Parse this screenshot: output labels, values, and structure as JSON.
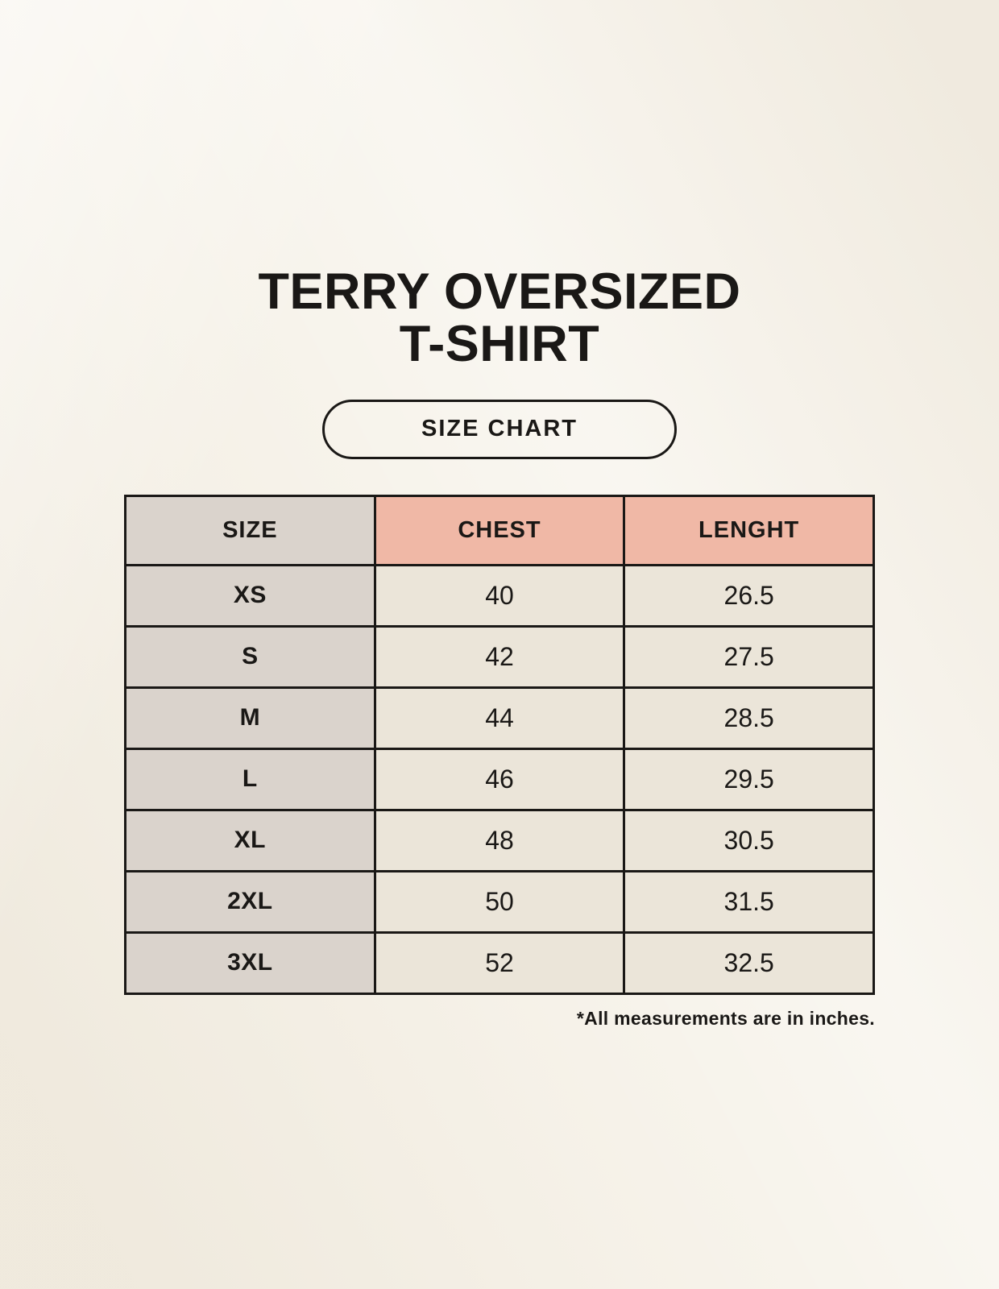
{
  "header": {
    "title_line1": "TERRY OVERSIZED",
    "title_line2": "T-SHIRT",
    "size_chart_button_label": "SIZE CHART"
  },
  "table": {
    "columns": [
      "SIZE",
      "CHEST",
      "LENGHT"
    ],
    "rows": [
      {
        "size": "XS",
        "chest": "40",
        "length": "26.5"
      },
      {
        "size": "S",
        "chest": "42",
        "length": "27.5"
      },
      {
        "size": "M",
        "chest": "44",
        "length": "28.5"
      },
      {
        "size": "L",
        "chest": "46",
        "length": "29.5"
      },
      {
        "size": "XL",
        "chest": "48",
        "length": "30.5"
      },
      {
        "size": "2XL",
        "chest": "50",
        "length": "31.5"
      },
      {
        "size": "3XL",
        "chest": "52",
        "length": "32.5"
      }
    ]
  },
  "footnote": "*All measurements are in inches.",
  "colors": {
    "background": "#f6f2e9",
    "header_size_bg": "#dad3cc",
    "header_measure_bg": "#f0b8a6",
    "size_column_bg": "#dad3cc",
    "data_cell_bg": "#ebe5d9",
    "border": "#1a1816",
    "text": "#1a1816"
  }
}
